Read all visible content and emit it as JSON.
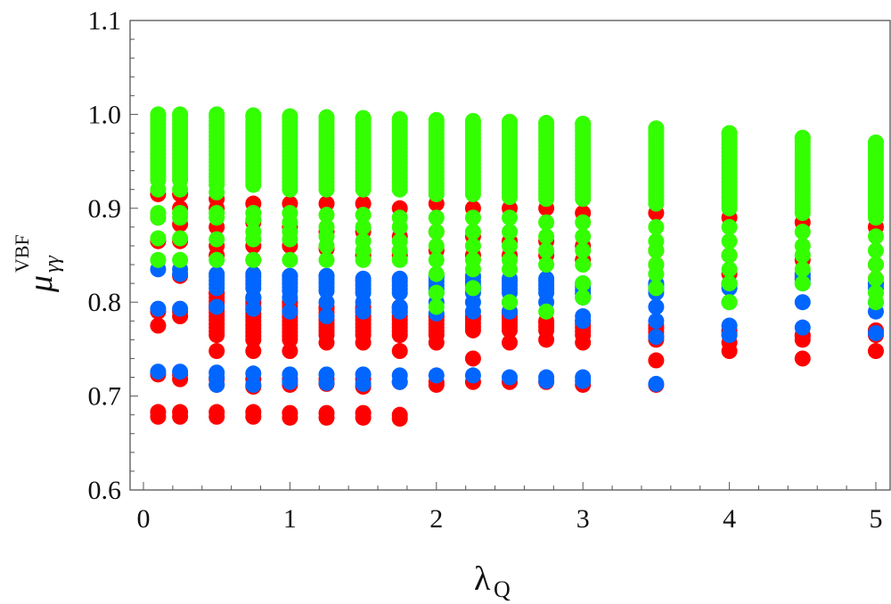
{
  "chart_data": {
    "type": "scatter",
    "title": "",
    "xlabel": {
      "main": "λ",
      "sub": "Q"
    },
    "ylabel": {
      "main": "μ",
      "sub": "γγ",
      "sup": "VBF"
    },
    "xlim": [
      -0.09,
      5.1
    ],
    "ylim": [
      0.6,
      1.1
    ],
    "xticks": [
      "0",
      "1",
      "2",
      "3",
      "4",
      "5"
    ],
    "yticks": [
      "0.6",
      "0.7",
      "0.8",
      "0.9",
      "1.0",
      "1.1"
    ],
    "grid": false,
    "legend": "none",
    "series": [
      {
        "name": "red",
        "color": "#ff0000",
        "columns": [
          {
            "x": 0.1,
            "ranges": [],
            "points": [
              0.915,
              0.89,
              0.865,
              0.79,
              0.775,
              0.723,
              0.683,
              0.678
            ]
          },
          {
            "x": 0.25,
            "ranges": [],
            "points": [
              0.915,
              0.9,
              0.883,
              0.865,
              0.828,
              0.79,
              0.785,
              0.723,
              0.718,
              0.683,
              0.678
            ]
          },
          {
            "x": 0.5,
            "ranges": [
              [
                0.765,
                0.81
              ]
            ],
            "points": [
              0.91,
              0.9,
              0.88,
              0.86,
              0.85,
              0.748,
              0.718,
              0.712,
              0.683,
              0.678
            ]
          },
          {
            "x": 0.75,
            "ranges": [
              [
                0.76,
                0.805
              ]
            ],
            "points": [
              0.905,
              0.885,
              0.86,
              0.845,
              0.748,
              0.718,
              0.71,
              0.683,
              0.678
            ]
          },
          {
            "x": 1,
            "ranges": [
              [
                0.76,
                0.8
              ]
            ],
            "points": [
              0.905,
              0.88,
              0.86,
              0.748,
              0.718,
              0.712,
              0.682,
              0.677
            ]
          },
          {
            "x": 1.25,
            "ranges": [
              [
                0.765,
                0.795
              ]
            ],
            "points": [
              0.905,
              0.875,
              0.857,
              0.757,
              0.718,
              0.713,
              0.682,
              0.677
            ]
          },
          {
            "x": 1.5,
            "ranges": [
              [
                0.765,
                0.795
              ]
            ],
            "points": [
              0.905,
              0.875,
              0.85,
              0.757,
              0.718,
              0.71,
              0.682,
              0.677
            ]
          },
          {
            "x": 1.75,
            "ranges": [
              [
                0.765,
                0.795
              ]
            ],
            "points": [
              0.9,
              0.87,
              0.85,
              0.748,
              0.715,
              0.68,
              0.676
            ]
          },
          {
            "x": 2,
            "ranges": [
              [
                0.765,
                0.785
              ]
            ],
            "points": [
              0.905,
              0.875,
              0.855,
              0.757,
              0.715,
              0.712
            ]
          },
          {
            "x": 2.25,
            "ranges": [
              [
                0.77,
                0.785
              ]
            ],
            "points": [
              0.9,
              0.87,
              0.85,
              0.74,
              0.715
            ]
          },
          {
            "x": 2.5,
            "ranges": [
              [
                0.77,
                0.79
              ]
            ],
            "points": [
              0.9,
              0.865,
              0.85,
              0.757,
              0.715
            ]
          },
          {
            "x": 2.75,
            "ranges": [
              [
                0.77,
                0.78
              ]
            ],
            "points": [
              0.9,
              0.865,
              0.85,
              0.76,
              0.715
            ]
          },
          {
            "x": 3,
            "ranges": [
              [
                0.765,
                0.78
              ]
            ],
            "points": [
              0.895,
              0.86,
              0.845,
              0.757,
              0.712
            ]
          },
          {
            "x": 3.5,
            "ranges": [
              [
                0.76,
                0.775
              ]
            ],
            "points": [
              0.895,
              0.855,
              0.84,
              0.738,
              0.712
            ]
          },
          {
            "x": 4,
            "ranges": [
              [
                0.765,
                0.77
              ]
            ],
            "points": [
              0.89,
              0.85,
              0.83,
              0.757,
              0.748
            ]
          },
          {
            "x": 4.5,
            "ranges": [
              [
                0.76,
                0.765
              ]
            ],
            "points": [
              0.885,
              0.845,
              0.825,
              0.74
            ]
          },
          {
            "x": 5,
            "ranges": [
              [
                0.765,
                0.77
              ]
            ],
            "points": [
              0.88,
              0.84,
              0.825,
              0.748
            ]
          }
        ]
      },
      {
        "name": "blue",
        "color": "#0066ff",
        "columns": [
          {
            "x": 0.1,
            "ranges": [],
            "points": [
              0.835,
              0.793,
              0.726
            ]
          },
          {
            "x": 0.25,
            "ranges": [],
            "points": [
              0.835,
              0.83,
              0.793,
              0.726
            ]
          },
          {
            "x": 0.5,
            "ranges": [
              [
                0.815,
                0.83
              ]
            ],
            "points": [
              0.795,
              0.725,
              0.72,
              0.712
            ]
          },
          {
            "x": 0.75,
            "ranges": [
              [
                0.815,
                0.83
              ]
            ],
            "points": [
              0.805,
              0.793,
              0.724,
              0.712
            ]
          },
          {
            "x": 1,
            "ranges": [
              [
                0.812,
                0.828
              ]
            ],
            "points": [
              0.805,
              0.79,
              0.723,
              0.715
            ]
          },
          {
            "x": 1.25,
            "ranges": [
              [
                0.812,
                0.828
              ]
            ],
            "points": [
              0.8,
              0.785,
              0.723,
              0.714
            ]
          },
          {
            "x": 1.5,
            "ranges": [
              [
                0.81,
                0.825
              ]
            ],
            "points": [
              0.8,
              0.79,
              0.723,
              0.713
            ]
          },
          {
            "x": 1.75,
            "ranges": [
              [
                0.81,
                0.825
              ]
            ],
            "points": [
              0.795,
              0.79,
              0.722,
              0.715
            ]
          },
          {
            "x": 2,
            "ranges": [
              [
                0.81,
                0.828
              ]
            ],
            "points": [
              0.8,
              0.788,
              0.722
            ]
          },
          {
            "x": 2.25,
            "ranges": [
              [
                0.81,
                0.828
              ]
            ],
            "points": [
              0.8,
              0.79,
              0.722
            ]
          },
          {
            "x": 2.5,
            "ranges": [
              [
                0.81,
                0.825
              ]
            ],
            "points": [
              0.8,
              0.79,
              0.72
            ]
          },
          {
            "x": 2.75,
            "ranges": [
              [
                0.81,
                0.825
              ]
            ],
            "points": [
              0.8,
              0.72,
              0.716
            ]
          },
          {
            "x": 3,
            "ranges": [
              [
                0.805,
                0.82
              ]
            ],
            "points": [
              0.785,
              0.78,
              0.72,
              0.716
            ]
          },
          {
            "x": 3.5,
            "ranges": [
              [
                0.81,
                0.82
              ]
            ],
            "points": [
              0.795,
              0.78,
              0.763,
              0.713
            ]
          },
          {
            "x": 4,
            "ranges": [
              [
                0.815,
                0.82
              ]
            ],
            "points": [
              0.8,
              0.775,
              0.765
            ]
          },
          {
            "x": 4.5,
            "ranges": [
              [
                0.82,
                0.83
              ]
            ],
            "points": [
              0.8,
              0.773
            ]
          },
          {
            "x": 5,
            "ranges": [
              [
                0.815,
                0.82
              ]
            ],
            "points": [
              0.8,
              0.79,
              0.767
            ]
          }
        ]
      },
      {
        "name": "green",
        "color": "#33ff00",
        "columns": [
          {
            "x": 0.1,
            "ranges": [
              [
                0.93,
                1.0
              ]
            ],
            "points": [
              0.92,
              0.895,
              0.89,
              0.868,
              0.845
            ]
          },
          {
            "x": 0.25,
            "ranges": [
              [
                0.93,
                1.0
              ]
            ],
            "points": [
              0.92,
              0.895,
              0.89,
              0.868,
              0.845
            ]
          },
          {
            "x": 0.5,
            "ranges": [
              [
                0.925,
                1.0
              ]
            ],
            "points": [
              0.917,
              0.895,
              0.89,
              0.867,
              0.845
            ]
          },
          {
            "x": 0.75,
            "ranges": [
              [
                0.925,
                0.999
              ]
            ],
            "points": [
              0.895,
              0.888,
              0.875,
              0.867,
              0.845
            ]
          },
          {
            "x": 1,
            "ranges": [
              [
                0.92,
                0.998
              ]
            ],
            "points": [
              0.895,
              0.885,
              0.875,
              0.867,
              0.845
            ]
          },
          {
            "x": 1.25,
            "ranges": [
              [
                0.92,
                0.997
              ]
            ],
            "points": [
              0.893,
              0.88,
              0.87,
              0.86,
              0.845
            ]
          },
          {
            "x": 1.5,
            "ranges": [
              [
                0.92,
                0.996
              ]
            ],
            "points": [
              0.893,
              0.88,
              0.865,
              0.855,
              0.845
            ]
          },
          {
            "x": 1.75,
            "ranges": [
              [
                0.92,
                0.995
              ]
            ],
            "points": [
              0.89,
              0.88,
              0.865,
              0.855,
              0.845
            ]
          },
          {
            "x": 2,
            "ranges": [
              [
                0.915,
                0.994
              ]
            ],
            "points": [
              0.89,
              0.875,
              0.86,
              0.845,
              0.83,
              0.81,
              0.795
            ]
          },
          {
            "x": 2.25,
            "ranges": [
              [
                0.915,
                0.993
              ]
            ],
            "points": [
              0.89,
              0.875,
              0.86,
              0.845,
              0.835,
              0.815
            ]
          },
          {
            "x": 2.5,
            "ranges": [
              [
                0.912,
                0.992
              ]
            ],
            "points": [
              0.89,
              0.875,
              0.86,
              0.845,
              0.835,
              0.8
            ]
          },
          {
            "x": 2.75,
            "ranges": [
              [
                0.91,
                0.991
              ]
            ],
            "points": [
              0.885,
              0.87,
              0.855,
              0.84,
              0.79
            ]
          },
          {
            "x": 3,
            "ranges": [
              [
                0.91,
                0.99
              ]
            ],
            "points": [
              0.885,
              0.87,
              0.855,
              0.84,
              0.82,
              0.805
            ]
          },
          {
            "x": 3.5,
            "ranges": [
              [
                0.905,
                0.985
              ]
            ],
            "points": [
              0.88,
              0.865,
              0.855,
              0.84,
              0.83,
              0.815
            ]
          },
          {
            "x": 4,
            "ranges": [
              [
                0.9,
                0.98
              ]
            ],
            "points": [
              0.88,
              0.865,
              0.85,
              0.835,
              0.82,
              0.8
            ]
          },
          {
            "x": 4.5,
            "ranges": [
              [
                0.895,
                0.975
              ]
            ],
            "points": [
              0.875,
              0.86,
              0.85,
              0.835,
              0.82
            ]
          },
          {
            "x": 5,
            "ranges": [
              [
                0.89,
                0.97
              ]
            ],
            "points": [
              0.87,
              0.855,
              0.84,
              0.825,
              0.81,
              0.8
            ]
          }
        ]
      }
    ]
  }
}
